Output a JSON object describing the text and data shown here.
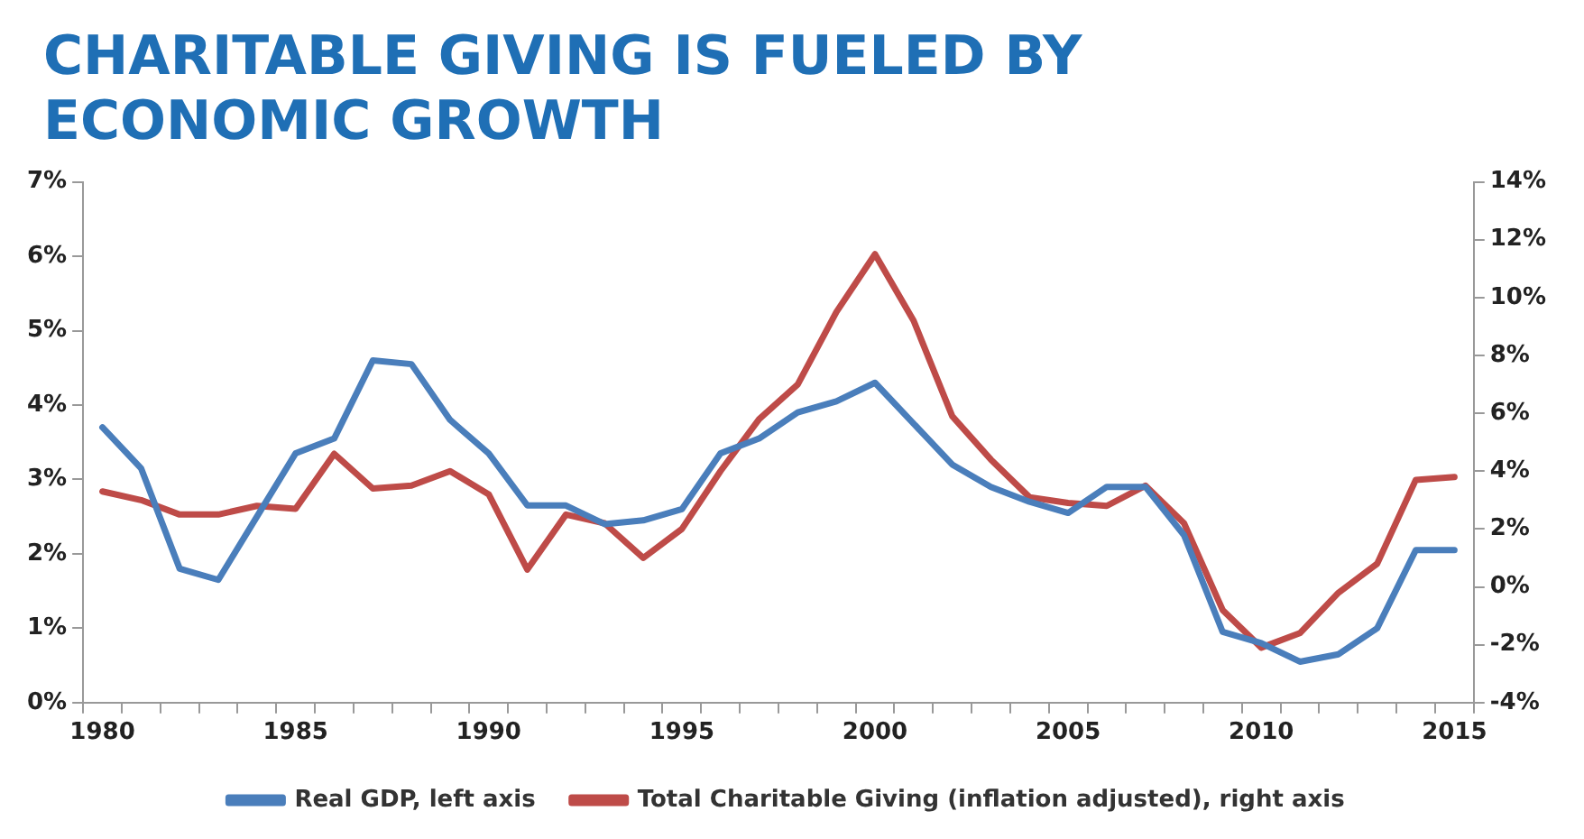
{
  "chart_data": {
    "type": "line",
    "title": "CHARITABLE GIVING IS FUELED BY ECONOMIC GROWTH",
    "categories": [
      "1980",
      null,
      null,
      null,
      null,
      "1985",
      null,
      null,
      null,
      null,
      "1990",
      null,
      null,
      null,
      null,
      "1995",
      null,
      null,
      null,
      null,
      "2000",
      null,
      null,
      null,
      null,
      "2005",
      null,
      null,
      null,
      null,
      "2010",
      null,
      null,
      null,
      null,
      "2015"
    ],
    "series": [
      {
        "name": "Real GDP, left axis",
        "color": "#4a7ebb",
        "values": [
          3.7,
          3.15,
          1.8,
          1.65,
          2.5,
          3.35,
          3.55,
          4.6,
          4.55,
          3.8,
          3.35,
          2.65,
          2.65,
          2.4,
          2.45,
          2.6,
          3.35,
          3.55,
          3.9,
          4.05,
          4.3,
          3.75,
          3.2,
          2.9,
          2.7,
          2.55,
          2.9,
          2.9,
          2.25,
          0.95,
          0.8,
          0.55,
          0.65,
          1.0,
          2.05,
          2.05
        ]
      },
      {
        "name": "Total Charitable Giving (inflation adjusted), right axis",
        "color": "#be4b48",
        "axis": "y2",
        "values": [
          3.3,
          3.0,
          2.5,
          2.5,
          2.8,
          2.7,
          4.6,
          3.4,
          3.5,
          4.0,
          3.2,
          0.6,
          2.5,
          2.2,
          1.0,
          2.0,
          4.0,
          5.8,
          7.0,
          9.5,
          11.5,
          9.2,
          5.9,
          4.4,
          3.1,
          2.9,
          2.8,
          3.5,
          2.2,
          -0.8,
          -2.1,
          -1.6,
          -0.2,
          0.8,
          3.7,
          3.8
        ]
      }
    ],
    "ylim": [
      0,
      7
    ],
    "yticks": [
      {
        "value": 0,
        "label": "0%"
      },
      {
        "value": 1,
        "label": "1%"
      },
      {
        "value": 2,
        "label": "2%"
      },
      {
        "value": 3,
        "label": "3%"
      },
      {
        "value": 4,
        "label": "4%"
      },
      {
        "value": 5,
        "label": "5%"
      },
      {
        "value": 6,
        "label": "6%"
      },
      {
        "value": 7,
        "label": "7%"
      }
    ],
    "y2lim": [
      -4,
      14
    ],
    "y2ticks": [
      {
        "value": -4,
        "label": "-4%"
      },
      {
        "value": -2,
        "label": "-2%"
      },
      {
        "value": 0,
        "label": "0%"
      },
      {
        "value": 2,
        "label": "2%"
      },
      {
        "value": 4,
        "label": "4%"
      },
      {
        "value": 6,
        "label": "6%"
      },
      {
        "value": 8,
        "label": "8%"
      },
      {
        "value": 10,
        "label": "10%"
      },
      {
        "value": 12,
        "label": "12%"
      },
      {
        "value": 14,
        "label": "14%"
      }
    ],
    "grid": false,
    "legend": "bottom",
    "marker": "none",
    "line_style": "solid"
  }
}
